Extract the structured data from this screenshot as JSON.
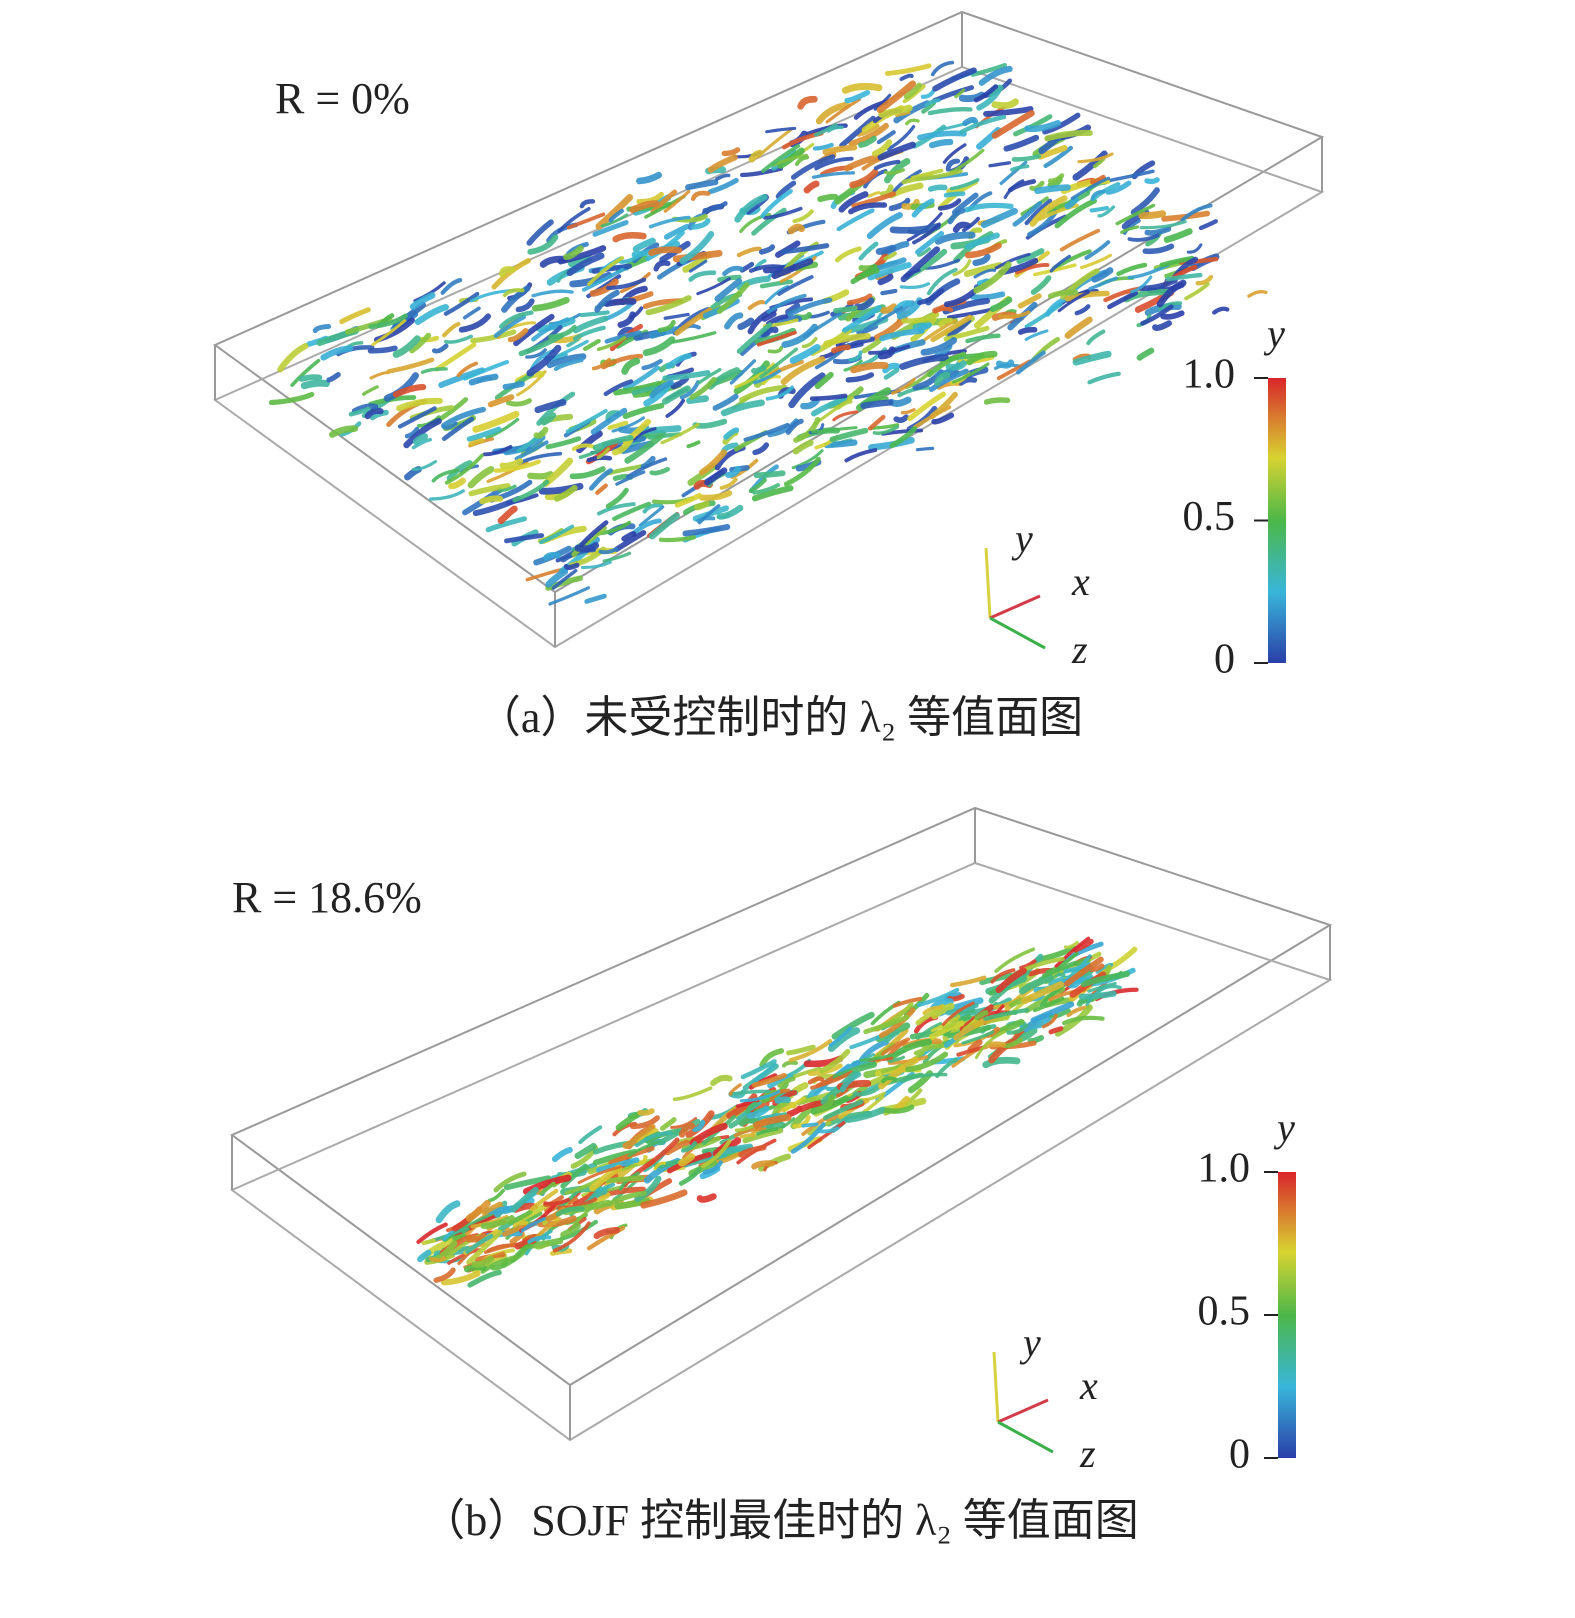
{
  "panels": [
    {
      "annotation": "R = 0%",
      "colorbar": {
        "label": "y",
        "lim": [
          0,
          1
        ],
        "ticks": [
          0,
          0.5,
          {
            "value": 1,
            "label": "1.0"
          }
        ]
      },
      "axes": {
        "y": "y",
        "x": "x",
        "z": "z"
      },
      "caption": "（a）未受控制时的 λ₂ 等值面图"
    },
    {
      "annotation": "R = 18.6%",
      "colorbar": {
        "label": "y",
        "lim": [
          0,
          1
        ],
        "ticks": [
          0,
          0.5,
          {
            "value": 1,
            "label": "1.0"
          }
        ]
      },
      "axes": {
        "y": "y",
        "x": "x",
        "z": "z"
      },
      "caption": "（b）SOJF 控制最佳时的 λ₂ 等值面图"
    }
  ]
}
